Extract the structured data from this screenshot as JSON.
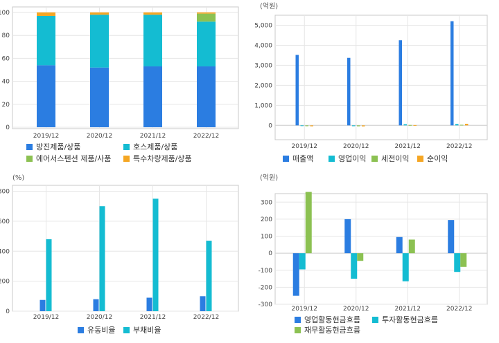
{
  "colors": {
    "blue": "#2b7de1",
    "cyan": "#14bcd2",
    "green": "#8cc152",
    "orange": "#f5a623",
    "grid": "#e6e6e6",
    "frame": "#c8c8c8"
  },
  "chart_data": [
    {
      "type": "bar",
      "stacked": true,
      "categories": [
        "2019/12",
        "2020/12",
        "2021/12",
        "2022/12"
      ],
      "ylim": [
        0,
        100
      ],
      "yticks": [
        0,
        20,
        40,
        60,
        80,
        100
      ],
      "series": [
        {
          "name": "방진제품/상품",
          "color": "#2b7de1",
          "values": [
            54,
            52,
            53,
            53
          ]
        },
        {
          "name": "호스제품/상품",
          "color": "#14bcd2",
          "values": [
            43,
            46,
            45,
            39
          ]
        },
        {
          "name": "에어서스펜션 제품/사품",
          "color": "#8cc152",
          "values": [
            0,
            0,
            0,
            7
          ]
        },
        {
          "name": "특수차량제품/상품",
          "color": "#f5a623",
          "values": [
            3,
            2,
            2,
            1
          ]
        }
      ],
      "legend": "bottom",
      "grid": true
    },
    {
      "type": "bar",
      "unit": "(억원)",
      "categories": [
        "2019/12",
        "2020/12",
        "2021/12",
        "2022/12"
      ],
      "ylim": [
        -300,
        5500
      ],
      "yticks": [
        0,
        1000,
        2000,
        3000,
        4000,
        5000
      ],
      "ytick_labels": [
        "0",
        "1,000",
        "2,000",
        "3,000",
        "4,000",
        "5,000"
      ],
      "series": [
        {
          "name": "매출액",
          "color": "#2b7de1",
          "values": [
            3520,
            3370,
            4250,
            5200
          ]
        },
        {
          "name": "영업이익",
          "color": "#14bcd2",
          "values": [
            -30,
            -40,
            60,
            70
          ]
        },
        {
          "name": "세전이익",
          "color": "#8cc152",
          "values": [
            -40,
            -45,
            20,
            30
          ]
        },
        {
          "name": "순이익",
          "color": "#f5a623",
          "values": [
            -45,
            -50,
            15,
            80
          ]
        }
      ],
      "legend": "bottom",
      "grid": true
    },
    {
      "type": "bar",
      "unit": "(%)",
      "categories": [
        "2019/12",
        "2020/12",
        "2021/12",
        "2022/12"
      ],
      "ylim": [
        0,
        830
      ],
      "yticks": [
        0,
        200,
        400,
        600,
        800
      ],
      "series": [
        {
          "name": "유동비율",
          "color": "#2b7de1",
          "values": [
            75,
            80,
            90,
            100
          ]
        },
        {
          "name": "부채비율",
          "color": "#14bcd2",
          "values": [
            480,
            700,
            750,
            470
          ]
        }
      ],
      "legend": "bottom",
      "grid": true
    },
    {
      "type": "bar",
      "unit": "(억원)",
      "categories": [
        "2019/12",
        "2020/12",
        "2021/12",
        "2022/12"
      ],
      "ylim": [
        -300,
        350
      ],
      "yticks": [
        -300,
        -200,
        -100,
        0,
        100,
        200,
        300
      ],
      "series": [
        {
          "name": "영업활동현금흐름",
          "color": "#2b7de1",
          "values": [
            -250,
            200,
            95,
            195
          ]
        },
        {
          "name": "투자활동현금흐름",
          "color": "#14bcd2",
          "values": [
            -95,
            -150,
            -165,
            -110
          ]
        },
        {
          "name": "재무활동현금흐름",
          "color": "#8cc152",
          "values": [
            360,
            -45,
            80,
            -80
          ]
        }
      ],
      "legend": "bottom",
      "grid": true
    }
  ]
}
